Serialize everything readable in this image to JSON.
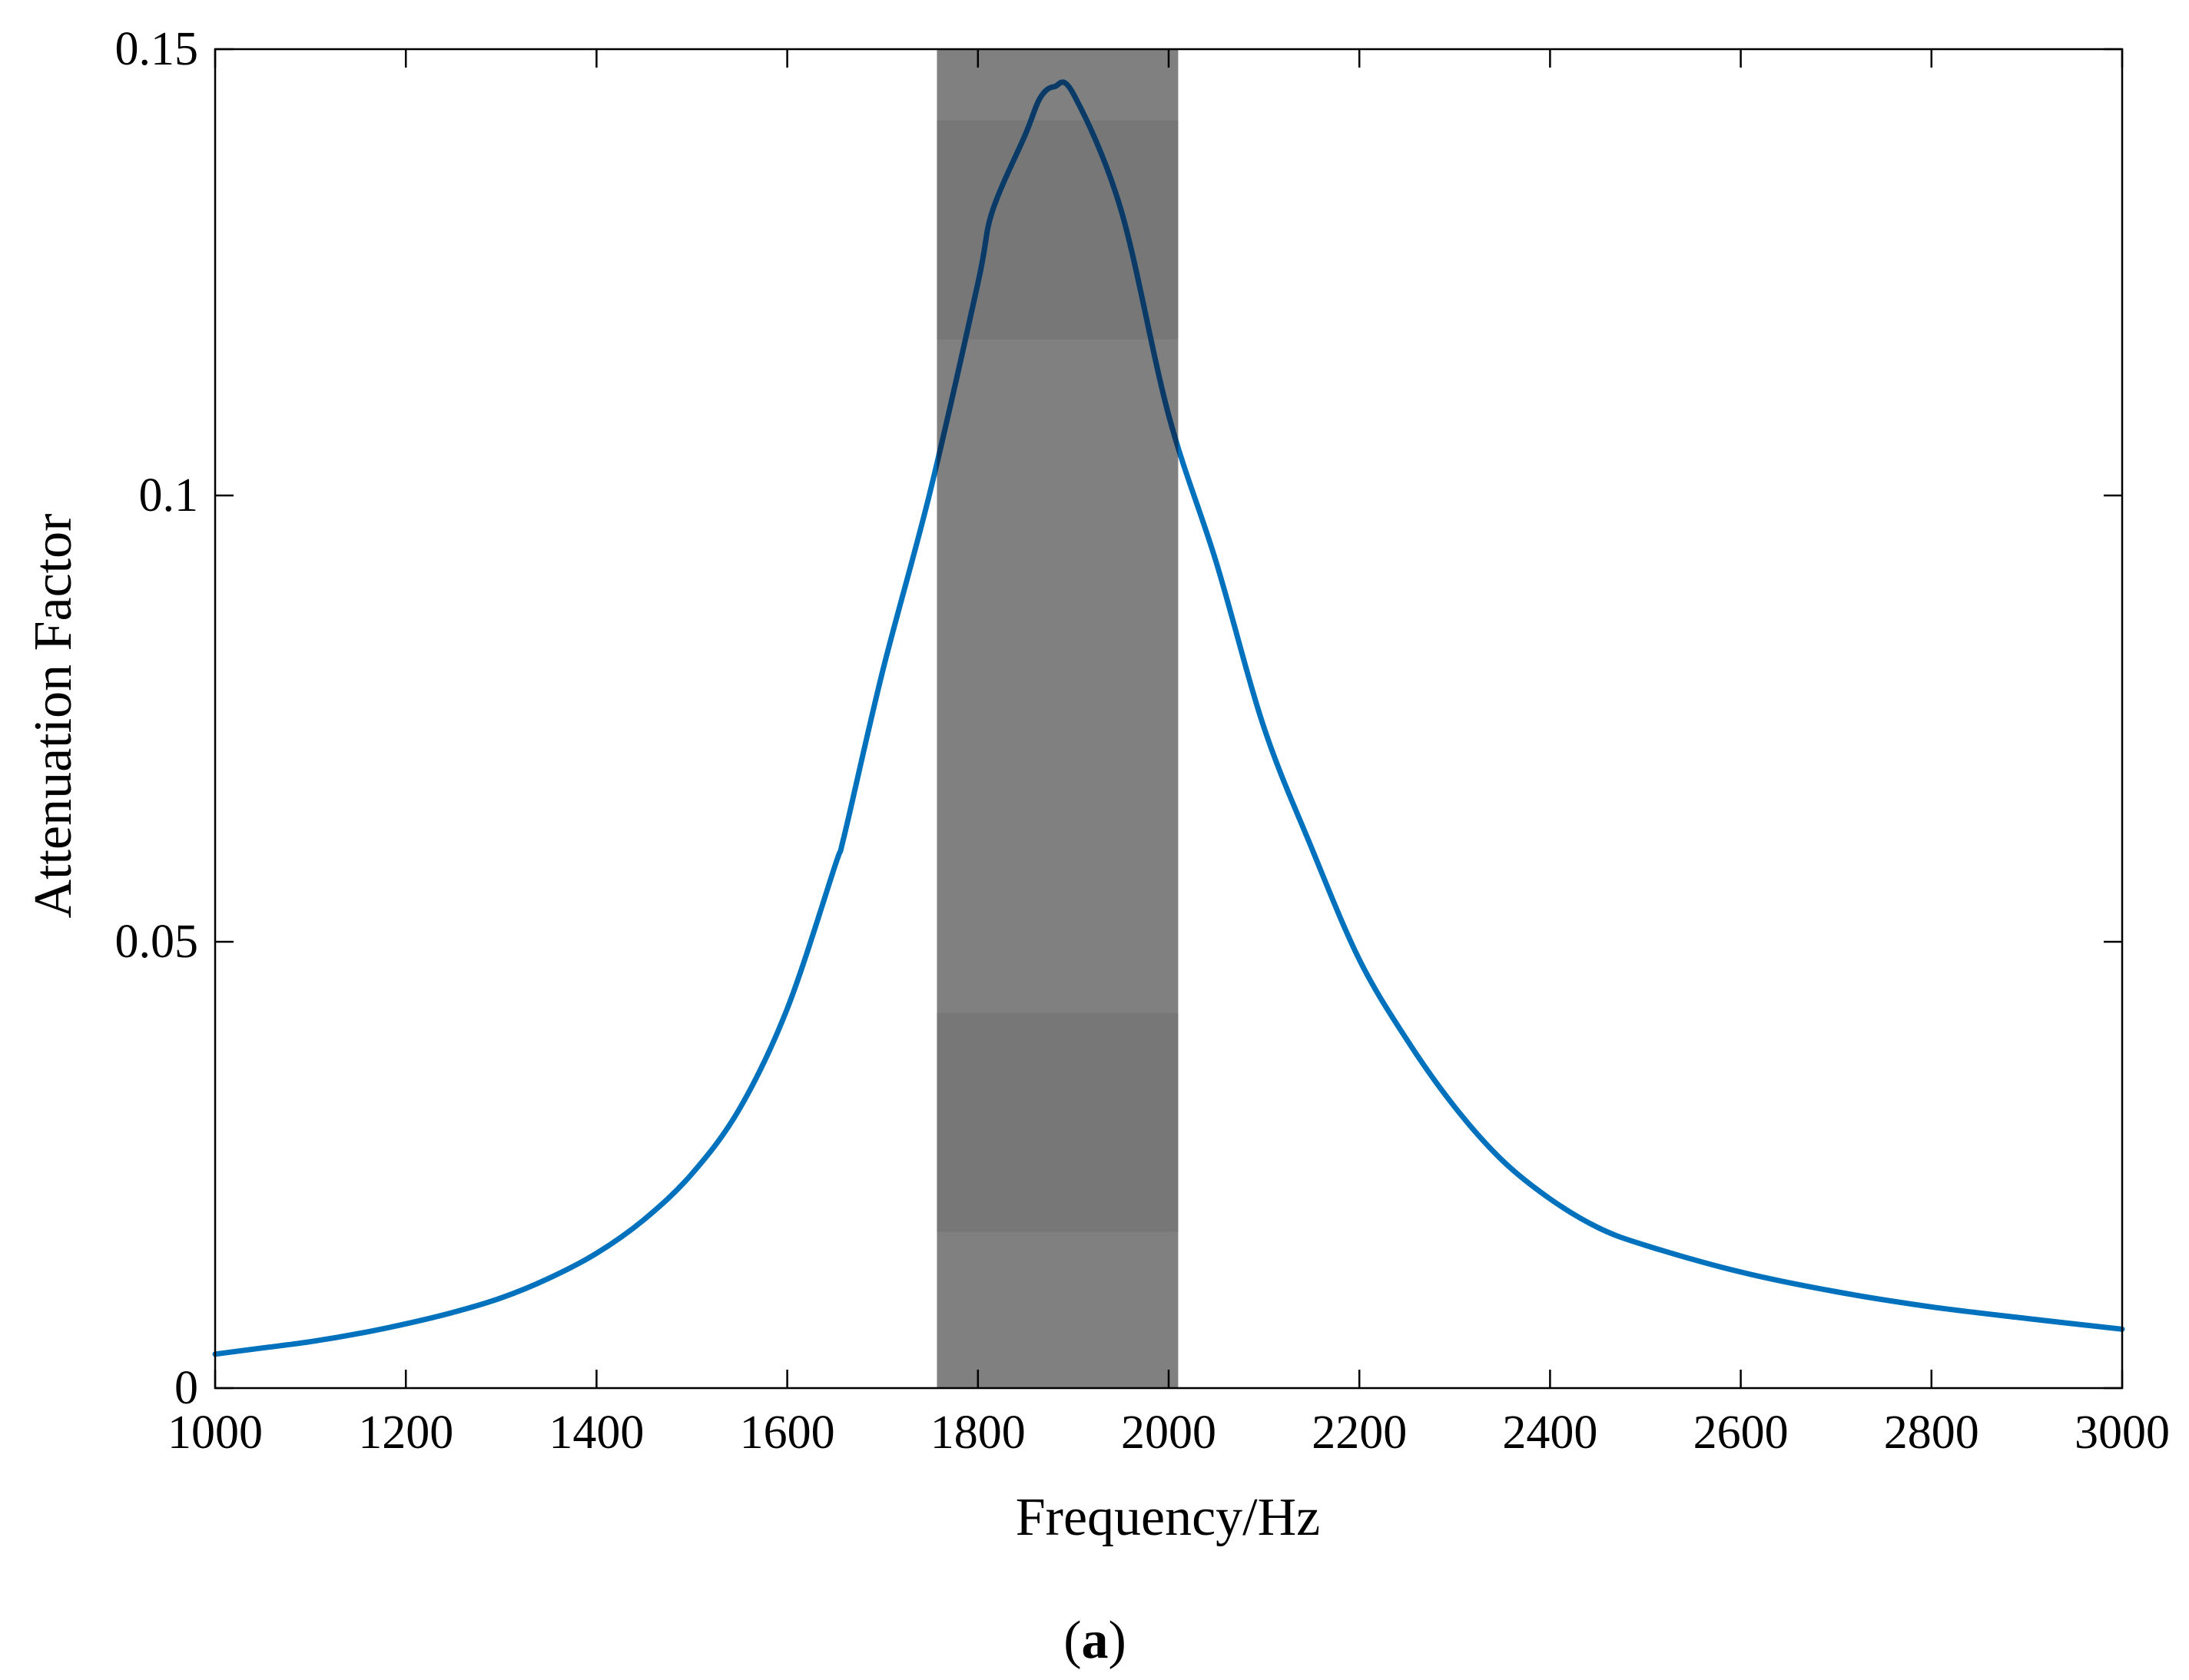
{
  "figure": {
    "panel_label_open": "(",
    "panel_label_letter": "a",
    "panel_label_close": ")"
  },
  "chart_data": {
    "type": "line",
    "title": "",
    "xlabel": "Frequency/Hz",
    "ylabel": "Attenuation Factor",
    "xlim": [
      1000,
      3000
    ],
    "ylim": [
      0,
      0.15
    ],
    "x_ticks": [
      1000,
      1200,
      1400,
      1600,
      1800,
      2000,
      2200,
      2400,
      2600,
      2800,
      3000
    ],
    "x_tick_labels": [
      "1000",
      "1200",
      "1400",
      "1600",
      "1800",
      "2000",
      "2200",
      "2400",
      "2600",
      "2800",
      "3000"
    ],
    "y_ticks": [
      0,
      0.05,
      0.1,
      0.15
    ],
    "y_tick_labels": [
      "0",
      "0.05",
      "0.1",
      "0.15"
    ],
    "grid": false,
    "legend": "none",
    "band_gap": {
      "x_start": 1757,
      "x_end": 2010,
      "color": "#808080",
      "darker_bands_y": [
        [
          0.1175,
          0.142
        ],
        [
          0.0175,
          0.042
        ]
      ],
      "darker_color": "#777777"
    },
    "series": [
      {
        "color": "#0072BD",
        "x": [
          1000,
          1050,
          1100,
          1150,
          1200,
          1250,
          1300,
          1350,
          1400,
          1450,
          1500,
          1550,
          1600,
          1650,
          1660,
          1700,
          1750,
          1800,
          1815,
          1850,
          1865,
          1880,
          1900,
          1950,
          2000,
          2050,
          2100,
          2150,
          2200,
          2250,
          2300,
          2350,
          2400,
          2450,
          2500,
          2600,
          2700,
          2800,
          2900,
          3000
        ],
        "y": [
          0.0038,
          0.0045,
          0.0052,
          0.0061,
          0.0072,
          0.0085,
          0.0101,
          0.0123,
          0.0151,
          0.0189,
          0.024,
          0.0313,
          0.0425,
          0.0585,
          0.062,
          0.0803,
          0.1005,
          0.1238,
          0.1318,
          0.1405,
          0.1445,
          0.1458,
          0.145,
          0.132,
          0.109,
          0.0925,
          0.074,
          0.0605,
          0.048,
          0.039,
          0.0315,
          0.0255,
          0.0212,
          0.018,
          0.016,
          0.013,
          0.0108,
          0.0091,
          0.0078,
          0.0066
        ]
      }
    ]
  }
}
